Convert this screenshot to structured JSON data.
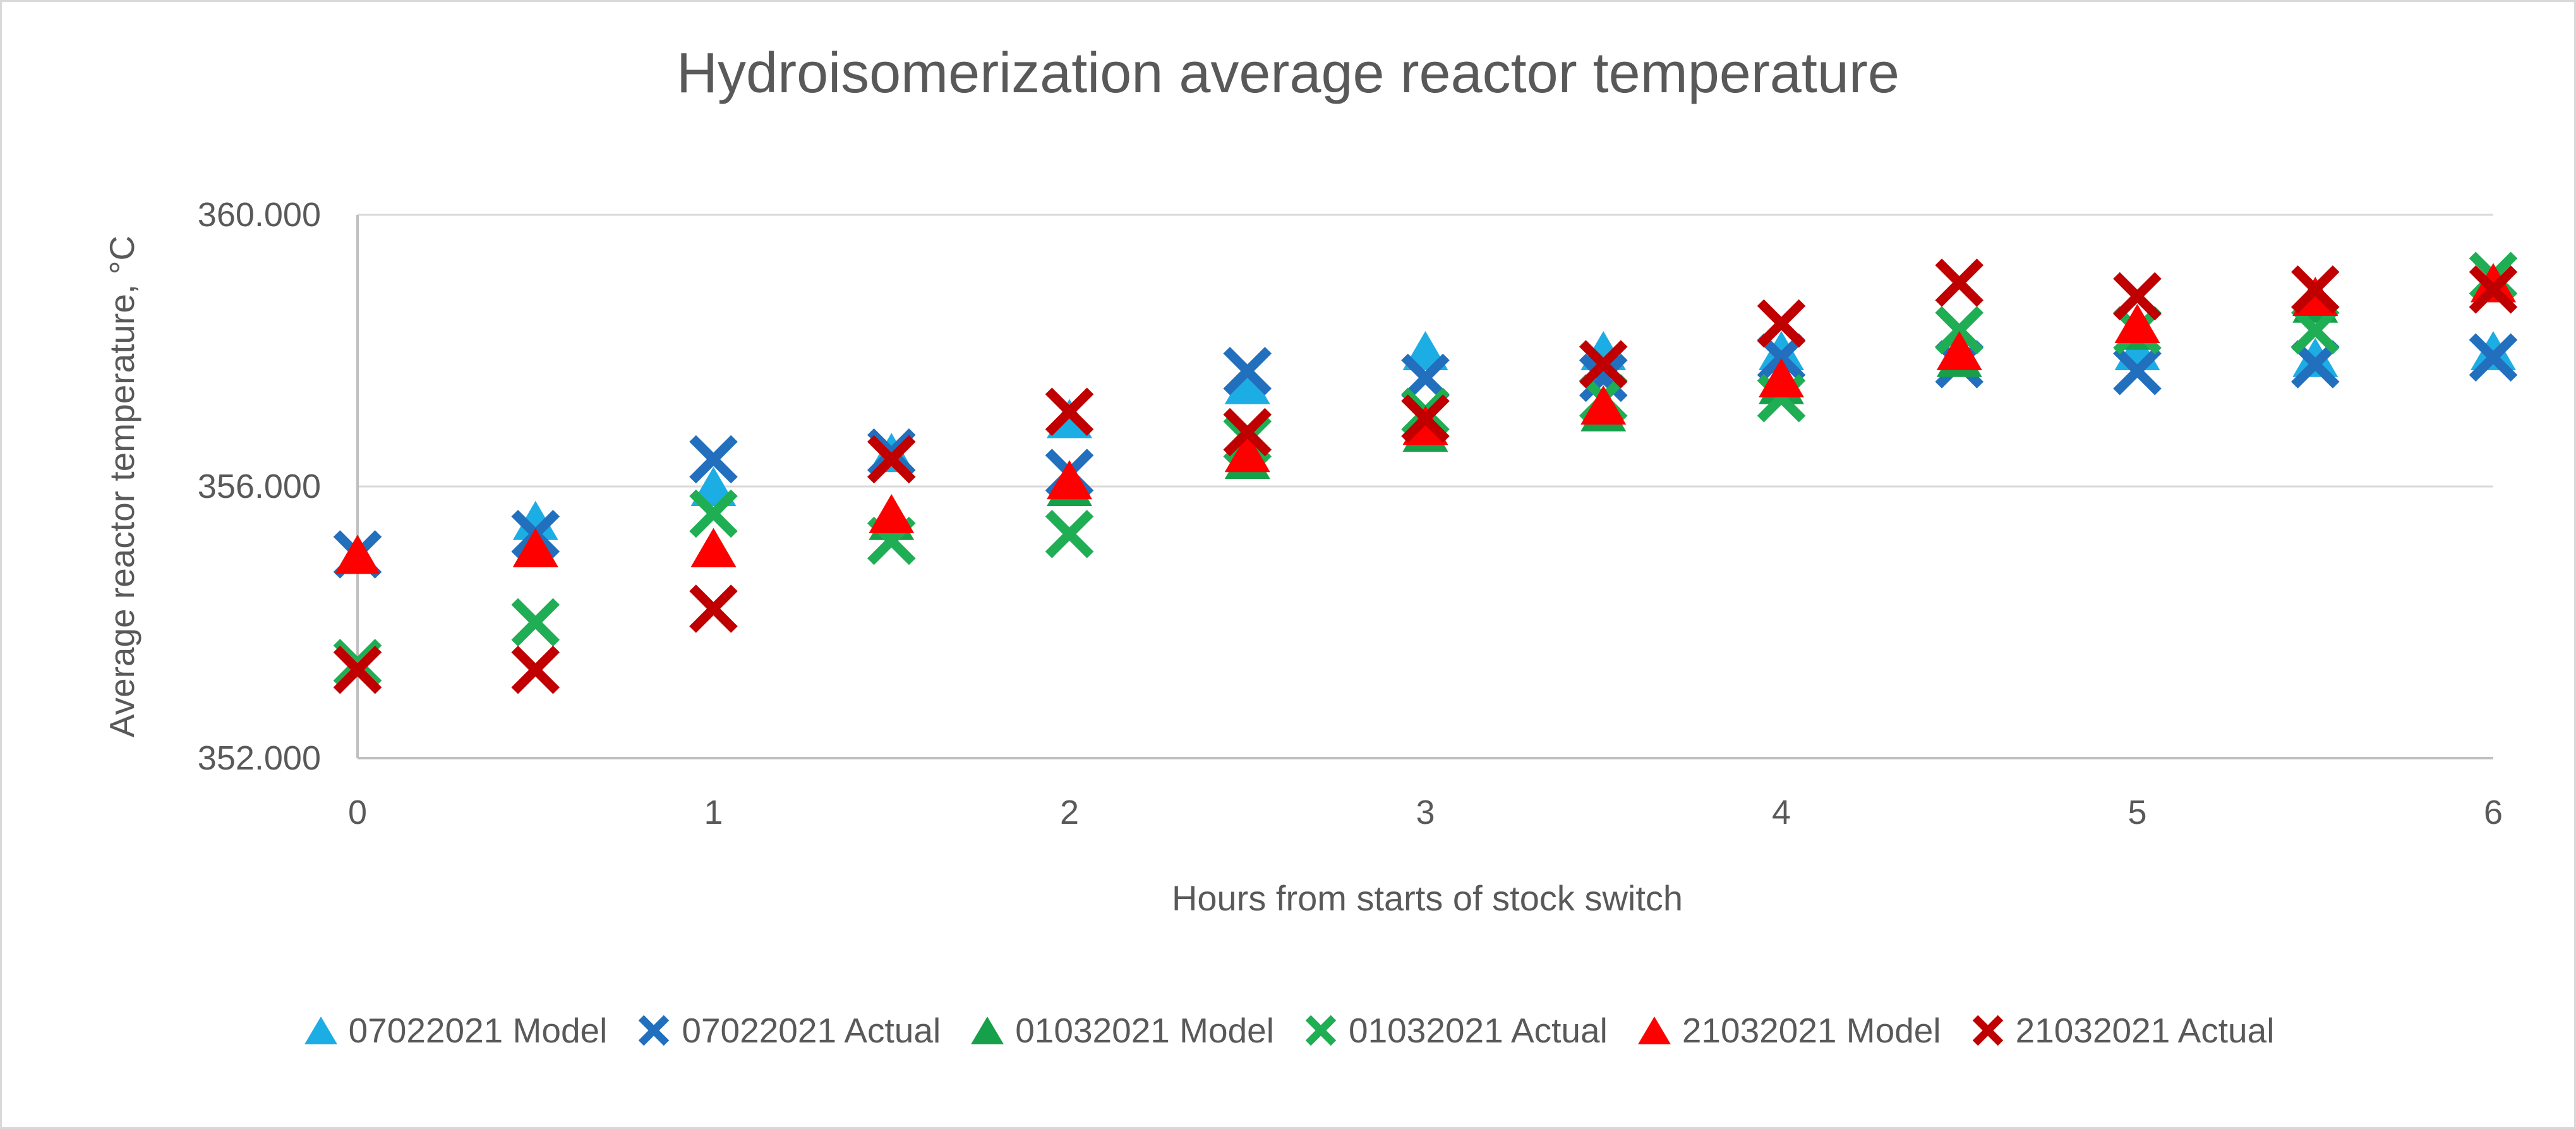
{
  "chart_data": {
    "type": "scatter",
    "title": "Hydroisomerization average reactor temperature",
    "xlabel": "Hours from starts of stock switch",
    "ylabel": "Average reactor temperature, °C",
    "xlim": [
      0,
      6
    ],
    "ylim": [
      352,
      360
    ],
    "grid": "horizontal",
    "legend_position": "bottom",
    "x_ticks": [
      0,
      1,
      2,
      3,
      4,
      5,
      6
    ],
    "y_ticks": [
      {
        "value": 360,
        "label": "360.000"
      },
      {
        "value": 356,
        "label": "356.000"
      },
      {
        "value": 352,
        "label": "352.000"
      }
    ],
    "x": [
      0,
      0.5,
      1,
      1.5,
      2,
      2.5,
      3,
      3.5,
      4,
      4.5,
      5,
      5.5,
      6
    ],
    "series": [
      {
        "name": "07022021 Model",
        "marker": "triangle",
        "color": "#1CADE4",
        "values": [
          355.0,
          355.5,
          356.0,
          356.5,
          357.0,
          357.5,
          358.0,
          358.0,
          358.0,
          358.0,
          358.0,
          357.9,
          358.0
        ]
      },
      {
        "name": "07022021 Actual",
        "marker": "x",
        "color": "#216FBD",
        "values": [
          355.0,
          355.3,
          356.4,
          356.5,
          356.2,
          357.7,
          357.6,
          357.6,
          357.9,
          357.8,
          357.7,
          357.8,
          357.9
        ]
      },
      {
        "name": "01032021 Model",
        "marker": "triangle",
        "color": "#17A04A",
        "values": [
          355.0,
          355.1,
          355.1,
          355.5,
          356.0,
          356.4,
          356.8,
          357.1,
          357.5,
          357.9,
          358.3,
          358.7,
          359.0
        ]
      },
      {
        "name": "01032021 Actual",
        "marker": "x",
        "color": "#1FAE54",
        "values": [
          353.4,
          354.0,
          355.6,
          355.2,
          355.3,
          356.7,
          357.1,
          357.3,
          357.3,
          358.3,
          358.3,
          358.3,
          359.1
        ]
      },
      {
        "name": "21032021 Model",
        "marker": "triangle",
        "color": "#FF0000",
        "values": [
          355.0,
          355.1,
          355.1,
          355.6,
          356.1,
          356.5,
          356.9,
          357.2,
          357.6,
          358.0,
          358.4,
          358.8,
          359.0
        ]
      },
      {
        "name": "21032021 Actual",
        "marker": "x",
        "color": "#C00000",
        "values": [
          353.3,
          353.3,
          354.2,
          356.4,
          357.1,
          356.8,
          357.0,
          357.8,
          358.4,
          359.0,
          358.8,
          358.9,
          358.9
        ]
      }
    ]
  },
  "style_colors": {
    "text": "#595959",
    "gridline": "#D9D9D9",
    "axis_line": "#BFBFBF",
    "background": "#FFFFFF"
  }
}
